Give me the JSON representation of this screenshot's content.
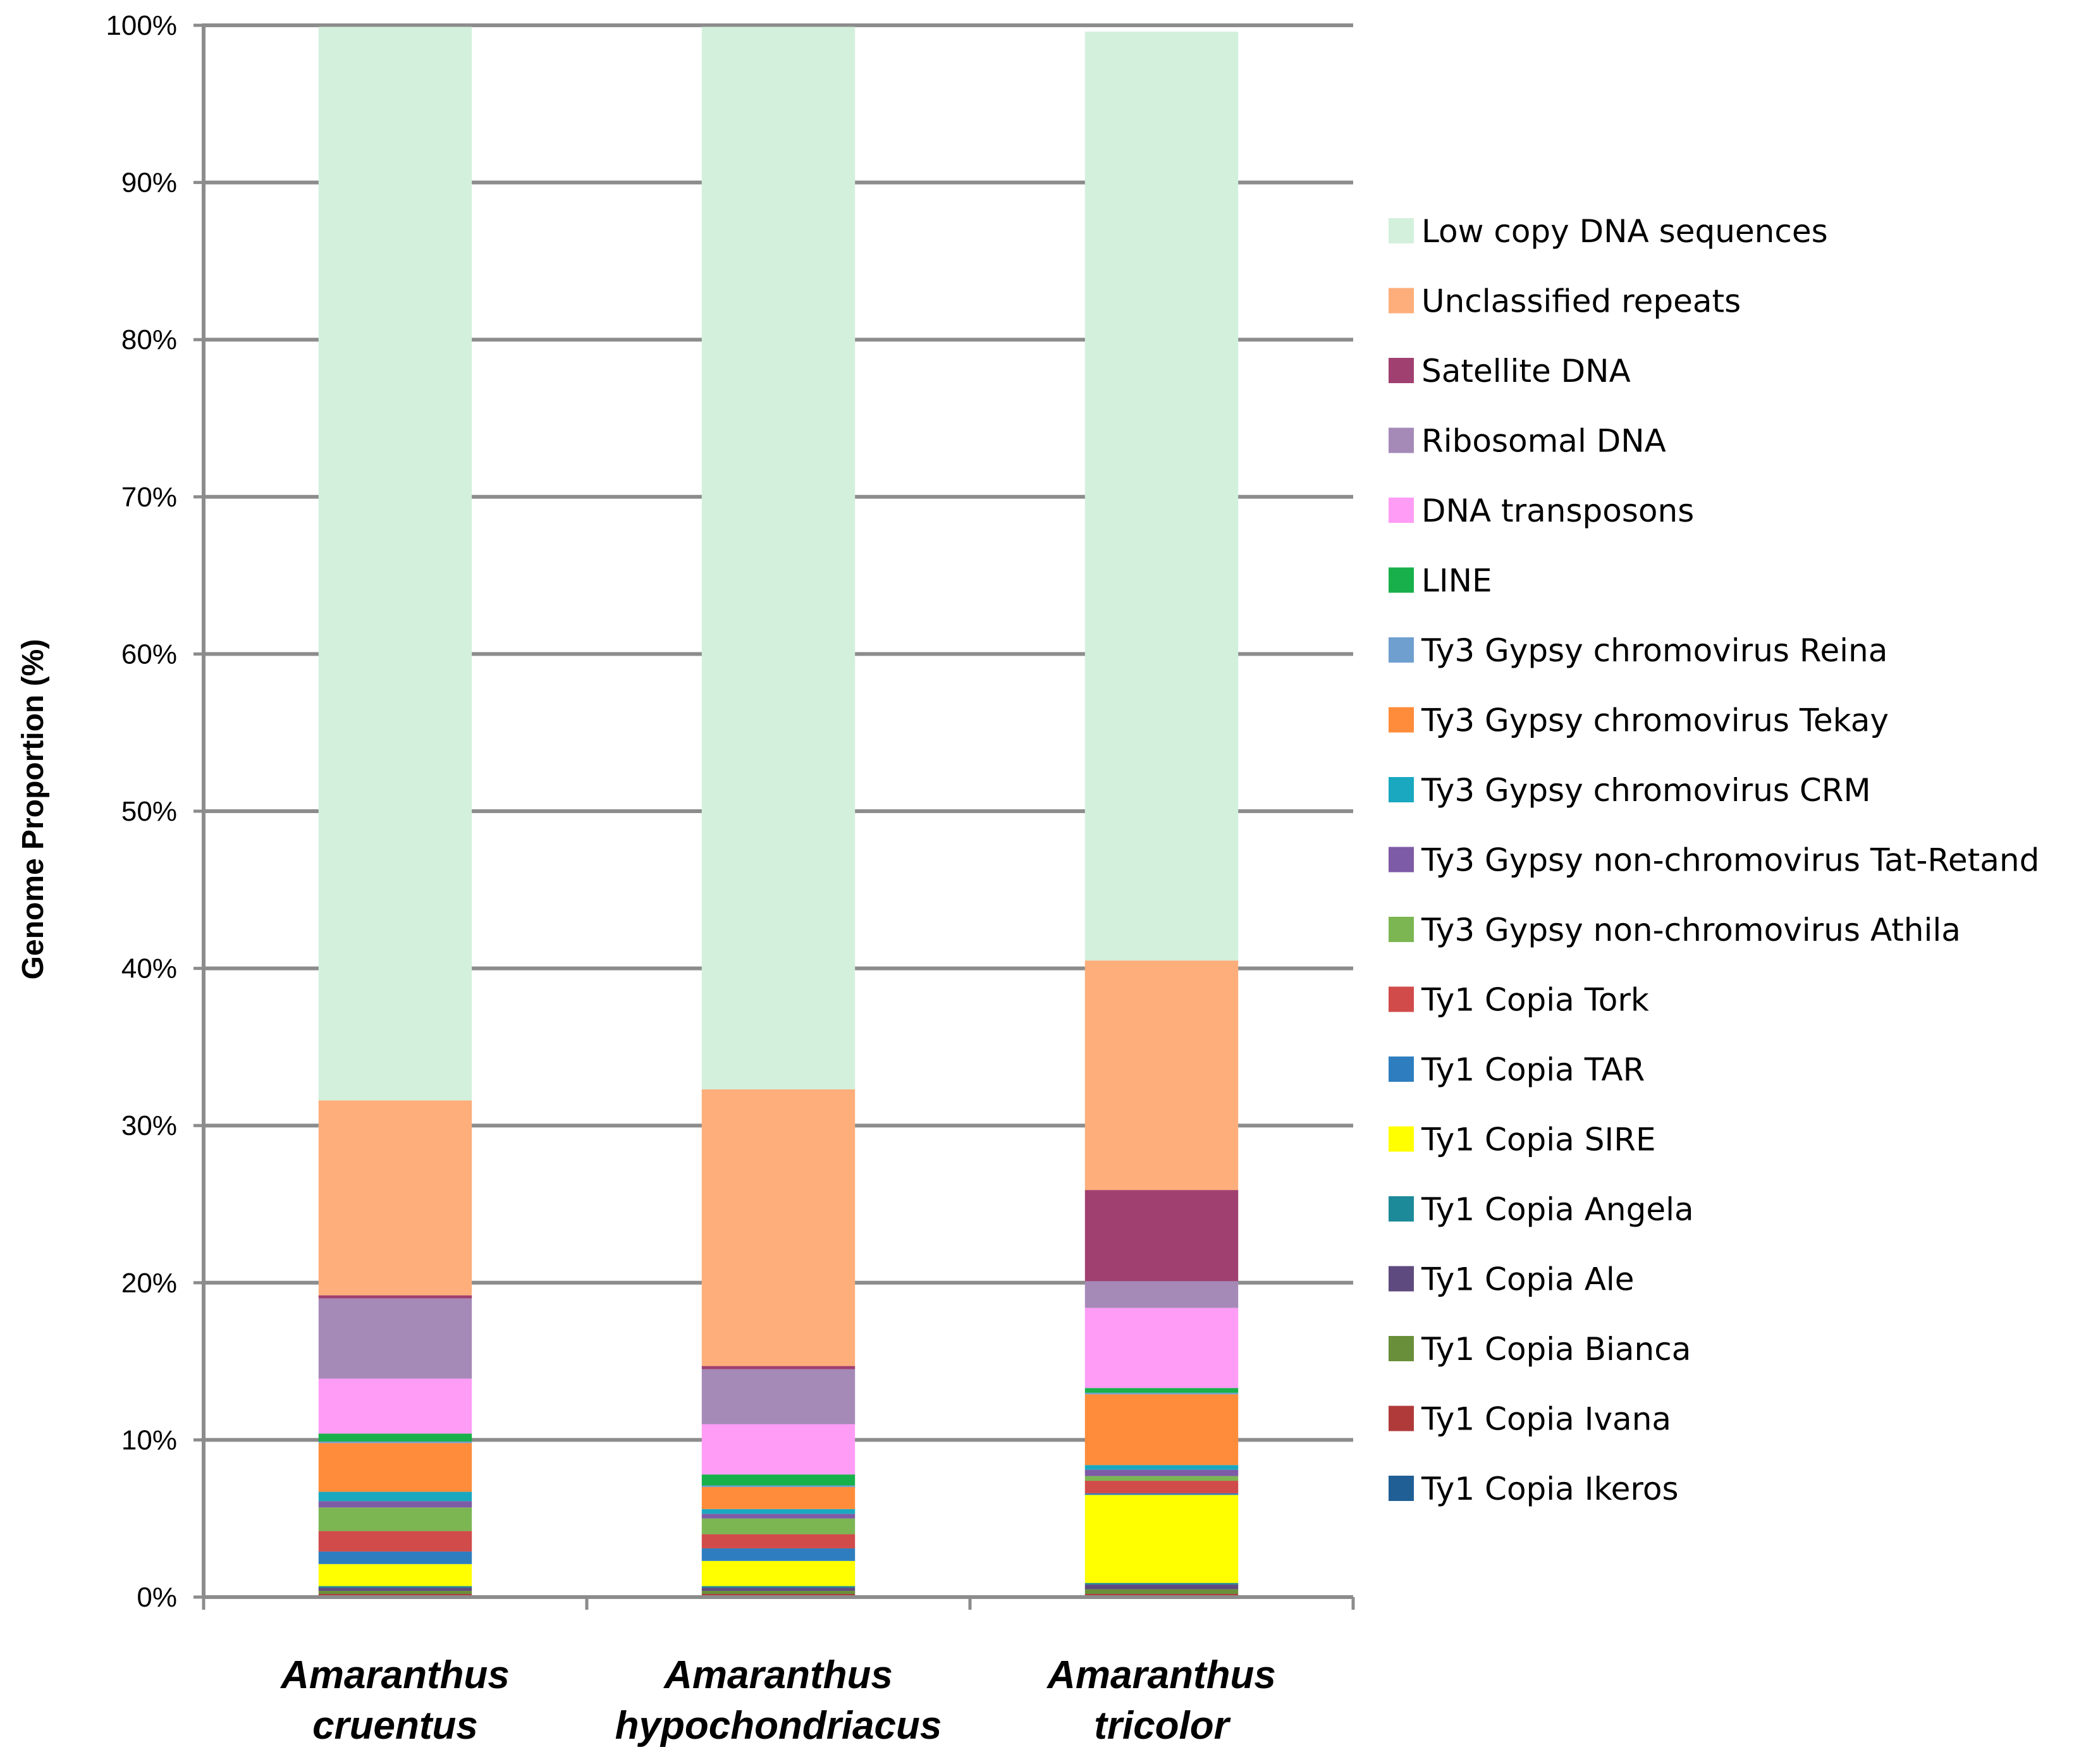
{
  "chart_data": {
    "type": "bar",
    "stacked": true,
    "title": "",
    "xlabel": "",
    "ylabel": "Genome Proportion (%)",
    "ylim": [
      0,
      100
    ],
    "yticks": [
      "0%",
      "10%",
      "20%",
      "30%",
      "40%",
      "50%",
      "60%",
      "70%",
      "80%",
      "90%",
      "100%"
    ],
    "grid": true,
    "legend_position": "right",
    "categories": [
      {
        "line1": "Amaranthus",
        "line2": "cruentus"
      },
      {
        "line1": "Amaranthus",
        "line2": "hypochondriacus"
      },
      {
        "line1": "Amaranthus",
        "line2": "tricolor"
      }
    ],
    "series": [
      {
        "name": "Ty1 Copia Ikeros",
        "color": "#1f5f96",
        "values": [
          0.1,
          0.1,
          0.1
        ]
      },
      {
        "name": "Ty1 Copia Ivana",
        "color": "#b03a3a",
        "values": [
          0.1,
          0.1,
          0.1
        ]
      },
      {
        "name": "Ty1 Copia Bianca",
        "color": "#6a8f3a",
        "values": [
          0.2,
          0.2,
          0.3
        ]
      },
      {
        "name": "Ty1 Copia Ale",
        "color": "#5e4a7e",
        "values": [
          0.2,
          0.2,
          0.3
        ]
      },
      {
        "name": "Ty1 Copia Angela",
        "color": "#1d8a99",
        "values": [
          0.1,
          0.1,
          0.1
        ]
      },
      {
        "name": "Ty1 Copia SIRE",
        "color": "#ffff00",
        "values": [
          1.4,
          1.6,
          5.6
        ]
      },
      {
        "name": "Ty1 Copia TAR",
        "color": "#2e7ebf",
        "values": [
          0.8,
          0.8,
          0.1
        ]
      },
      {
        "name": "Ty1 Copia Tork",
        "color": "#d14b4b",
        "values": [
          1.3,
          0.9,
          0.8
        ]
      },
      {
        "name": "Ty3 Gypsy non-chromovirus Athila",
        "color": "#7cb653",
        "values": [
          1.5,
          1.0,
          0.3
        ]
      },
      {
        "name": "Ty3 Gypsy non-chromovirus Tat-Retand",
        "color": "#7e5ba6",
        "values": [
          0.4,
          0.3,
          0.4
        ]
      },
      {
        "name": "Ty3 Gypsy chromovirus CRM",
        "color": "#1aa8c0",
        "values": [
          0.6,
          0.3,
          0.3
        ]
      },
      {
        "name": "Ty3 Gypsy chromovirus Tekay",
        "color": "#ff8c3a",
        "values": [
          3.1,
          1.4,
          4.5
        ]
      },
      {
        "name": "Ty3 Gypsy chromovirus Reina",
        "color": "#6f9fcf",
        "values": [
          0.1,
          0.1,
          0.1
        ]
      },
      {
        "name": "LINE",
        "color": "#18b04a",
        "values": [
          0.5,
          0.7,
          0.3
        ]
      },
      {
        "name": "DNA transposons",
        "color": "#ff9cf5",
        "values": [
          3.5,
          3.2,
          5.1
        ]
      },
      {
        "name": "Ribosomal DNA",
        "color": "#a58ab8",
        "values": [
          5.1,
          3.5,
          1.7
        ]
      },
      {
        "name": "Satellite DNA",
        "color": "#a04070",
        "values": [
          0.2,
          0.2,
          5.8
        ]
      },
      {
        "name": "Unclassified repeats",
        "color": "#fdae7b",
        "values": [
          12.4,
          17.6,
          14.6
        ]
      },
      {
        "name": "Low copy DNA sequences",
        "color": "#d3f0dc",
        "values": [
          68.3,
          67.6,
          59.1
        ]
      }
    ]
  }
}
